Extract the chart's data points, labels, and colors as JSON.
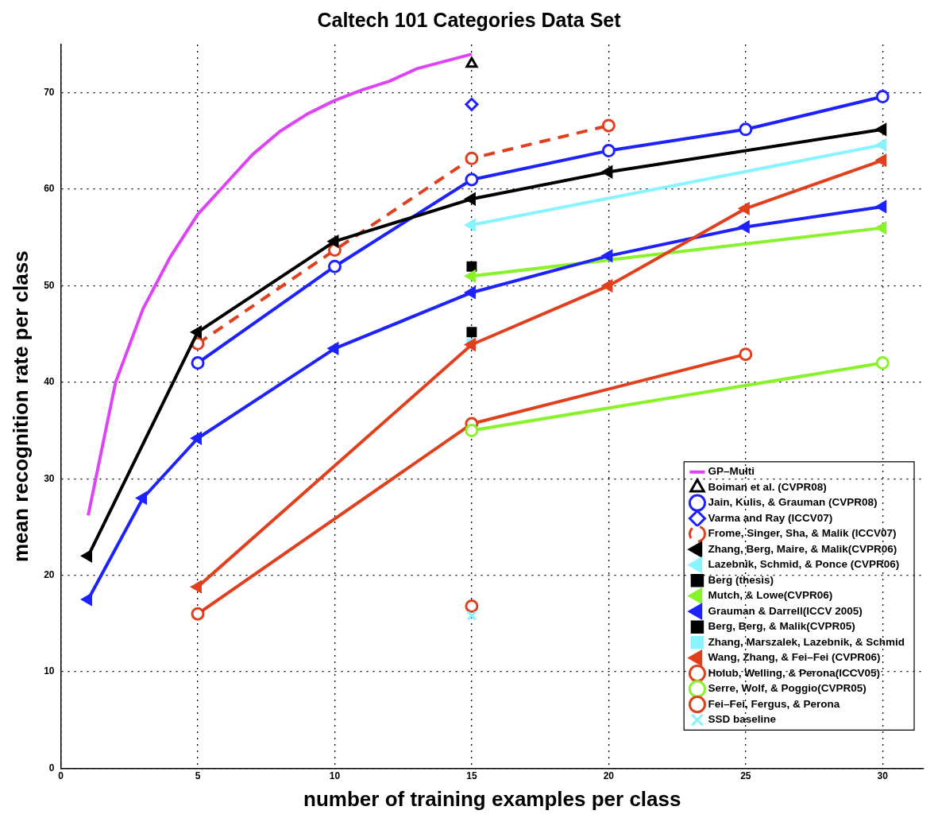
{
  "chart_data": {
    "type": "line",
    "title": "Caltech 101 Categories Data Set",
    "xlabel": "number of training examples per class",
    "ylabel": "mean recognition rate per class",
    "xlim": [
      0,
      31.5
    ],
    "ylim": [
      0,
      75
    ],
    "xticks": [
      0,
      5,
      10,
      15,
      20,
      25,
      30
    ],
    "yticks": [
      0,
      10,
      20,
      30,
      40,
      50,
      60,
      70
    ],
    "grid": true,
    "legend": "bottom right",
    "series": [
      {
        "name": "GP–Multi",
        "type": "line",
        "color": "#dd44f5",
        "marker": "none",
        "x": [
          1,
          2,
          3,
          4,
          5,
          6,
          7,
          8,
          9,
          10,
          11,
          12,
          13,
          15
        ],
        "values": [
          26.2,
          40,
          47.6,
          53,
          57.4,
          60.5,
          63.6,
          66,
          67.8,
          69.2,
          70.3,
          71.2,
          72.5,
          74
        ]
      },
      {
        "name": "Boiman et al. (CVPR08)",
        "type": "scatter",
        "color": "#000000",
        "marker": "triangle",
        "x": [
          15
        ],
        "values": [
          73
        ]
      },
      {
        "name": "Jain, Kulis, & Grauman (CVPR08)",
        "type": "line",
        "color": "#1e22ff",
        "marker": "circle",
        "x": [
          5,
          10,
          15,
          20,
          25,
          30
        ],
        "values": [
          42,
          52,
          61,
          64,
          66.2,
          69.6
        ]
      },
      {
        "name": "Varma and Ray (ICCV07)",
        "type": "scatter",
        "color": "#1e22ff",
        "marker": "diamond",
        "x": [
          15
        ],
        "values": [
          68.8
        ]
      },
      {
        "name": "Frome, Singer, Sha, & Malik (ICCV07)",
        "type": "line",
        "color": "#e0401e",
        "marker": "circle",
        "line_style": "dashed",
        "x": [
          5,
          10,
          15,
          20
        ],
        "values": [
          44,
          53.7,
          63.2,
          66.6
        ]
      },
      {
        "name": "Zhang, Berg, Maire, & Malik(CVPR06)",
        "type": "line",
        "color": "#000000",
        "marker": "triangle",
        "x": [
          1,
          5,
          10,
          15,
          20,
          30
        ],
        "values": [
          22,
          45.2,
          54.6,
          59,
          61.8,
          66.2
        ]
      },
      {
        "name": "Lazebnik, Schmid, & Ponce (CVPR06)",
        "type": "line",
        "color": "#88f4ff",
        "marker": "triangle",
        "x": [
          15,
          30
        ],
        "values": [
          56.3,
          64.6
        ]
      },
      {
        "name": "Berg (thesis)",
        "type": "scatter",
        "color": "#000000",
        "marker": "square",
        "x": [
          15
        ],
        "values": [
          52
        ]
      },
      {
        "name": "Mutch, & Lowe(CVPR06)",
        "type": "line",
        "color": "#88f22a",
        "marker": "triangle",
        "x": [
          15,
          30
        ],
        "values": [
          51,
          56
        ]
      },
      {
        "name": "Grauman & Darrell(ICCV 2005)",
        "type": "line",
        "color": "#1e22ff",
        "marker": "triangle",
        "x": [
          1,
          3,
          5,
          10,
          15,
          20,
          25,
          30
        ],
        "values": [
          17.5,
          28,
          34.2,
          43.5,
          49.3,
          53.1,
          56.1,
          58.2
        ]
      },
      {
        "name": "Berg, Berg, & Malik(CVPR05)",
        "type": "scatter",
        "color": "#000000",
        "marker": "square",
        "x": [
          15
        ],
        "values": [
          45.2
        ]
      },
      {
        "name": "Zhang, Marszalek, Lazebnik, & Schmid",
        "type": "scatter",
        "color": "#88f4ff",
        "marker": "square",
        "x": [
          15
        ],
        "values": [
          44
        ]
      },
      {
        "name": "Wang, Zhang, & Fei–Fei (CVPR06)",
        "type": "line",
        "color": "#e0401e",
        "marker": "triangle",
        "x": [
          5,
          15,
          20,
          25,
          30
        ],
        "values": [
          18.8,
          43.9,
          50,
          58,
          63
        ]
      },
      {
        "name": "Holub, Welling, & Perona(ICCV05)",
        "type": "line",
        "color": "#e0401e",
        "marker": "circle",
        "x": [
          5,
          15,
          25
        ],
        "values": [
          16,
          35.7,
          42.9
        ]
      },
      {
        "name": "Serre, Wolf, & Poggio(CVPR05)",
        "type": "line",
        "color": "#88f22a",
        "marker": "circle",
        "x": [
          15,
          30
        ],
        "values": [
          35,
          42
        ]
      },
      {
        "name": "Fei–Fei, Fergus, & Perona",
        "type": "scatter",
        "color": "#e0401e",
        "marker": "circle",
        "x": [
          15
        ],
        "values": [
          16.8
        ]
      },
      {
        "name": "SSD baseline",
        "type": "scatter",
        "color": "#88f4ff",
        "marker": "cross",
        "x": [
          15
        ],
        "values": [
          15.8
        ]
      }
    ]
  }
}
